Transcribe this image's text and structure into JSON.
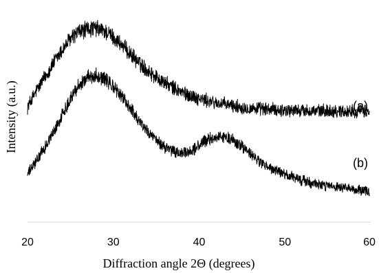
{
  "chart_data": {
    "type": "line",
    "title": "",
    "xlabel": "Diffraction angle 2Θ (degrees)",
    "ylabel": "Intensity (a.u.)",
    "xlim": [
      20,
      60
    ],
    "x_ticks": [
      "20",
      "30",
      "40",
      "50",
      "60"
    ],
    "y_ticks_shown": false,
    "grid": false,
    "colors": {
      "line": "#000000",
      "axis": "#d9d9d9"
    },
    "noise_amplitude": 0.11,
    "series": [
      {
        "name": "(a)",
        "x": [
          20,
          21,
          22,
          23,
          24,
          25,
          26,
          27,
          28,
          29,
          30,
          31,
          32,
          33,
          34,
          35,
          36,
          37,
          38,
          39,
          40,
          41,
          42,
          43,
          44,
          45,
          46,
          47,
          48,
          49,
          50,
          51,
          52,
          53,
          54,
          55,
          56,
          57,
          58,
          59,
          60
        ],
        "y": [
          2.6,
          2.92,
          3.2,
          3.48,
          3.74,
          3.98,
          4.12,
          4.18,
          4.19,
          4.14,
          4.02,
          3.86,
          3.68,
          3.5,
          3.35,
          3.22,
          3.1,
          3.0,
          2.91,
          2.84,
          2.78,
          2.73,
          2.69,
          2.66,
          2.63,
          2.6,
          2.58,
          2.57,
          2.56,
          2.55,
          2.54,
          2.54,
          2.53,
          2.53,
          2.52,
          2.53,
          2.52,
          2.52,
          2.52,
          2.52,
          2.52
        ]
      },
      {
        "name": "(b)",
        "x": [
          20,
          21,
          22,
          23,
          24,
          25,
          26,
          27,
          28,
          29,
          30,
          31,
          32,
          33,
          34,
          35,
          36,
          37,
          38,
          39,
          40,
          41,
          42,
          43,
          44,
          45,
          46,
          47,
          48,
          49,
          50,
          51,
          52,
          53,
          54,
          55,
          56,
          57,
          58,
          59,
          60
        ],
        "y": [
          1.25,
          1.5,
          1.78,
          2.08,
          2.42,
          2.78,
          3.05,
          3.2,
          3.25,
          3.18,
          3.02,
          2.82,
          2.6,
          2.35,
          2.12,
          1.94,
          1.8,
          1.71,
          1.66,
          1.7,
          1.82,
          1.94,
          2.0,
          2.0,
          1.94,
          1.82,
          1.66,
          1.52,
          1.4,
          1.32,
          1.25,
          1.19,
          1.13,
          1.08,
          1.04,
          1.01,
          0.98,
          0.96,
          0.94,
          0.92,
          0.9
        ]
      }
    ]
  }
}
